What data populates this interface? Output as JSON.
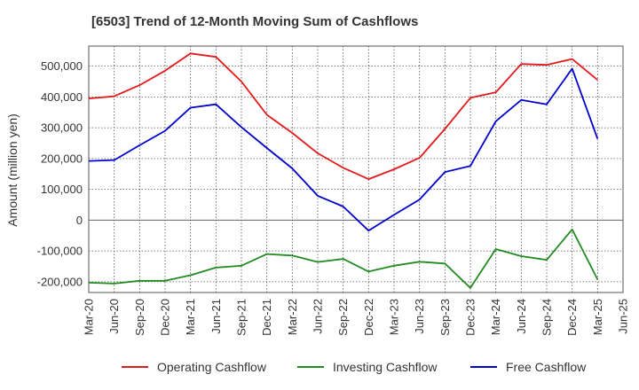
{
  "chart_data": {
    "type": "line",
    "title": "[6503]  Trend of 12-Month Moving Sum of Cashflows",
    "ylabel": "Amount (million yen)",
    "xlabel": "",
    "ylim": [
      -235000,
      565000
    ],
    "yticks": [
      -200000,
      -100000,
      0,
      100000,
      200000,
      300000,
      400000,
      500000
    ],
    "ytick_labels": [
      "-200,000",
      "-100,000",
      "0",
      "100,000",
      "200,000",
      "300,000",
      "400,000",
      "500,000"
    ],
    "categories": [
      "Mar-20",
      "Jun-20",
      "Sep-20",
      "Dec-20",
      "Mar-21",
      "Jun-21",
      "Sep-21",
      "Dec-21",
      "Mar-22",
      "Jun-22",
      "Sep-22",
      "Dec-22",
      "Mar-23",
      "Jun-23",
      "Sep-23",
      "Dec-23",
      "Mar-24",
      "Jun-24",
      "Sep-24",
      "Dec-24",
      "Mar-25",
      "Jun-25"
    ],
    "grid": true,
    "legend_position": "bottom",
    "series": [
      {
        "name": "Operating Cashflow",
        "color": "#e31a1c",
        "values": [
          395000,
          402000,
          438000,
          485000,
          541000,
          530000,
          450000,
          342000,
          283000,
          217000,
          170000,
          133000,
          165000,
          202000,
          296000,
          397000,
          415000,
          507000,
          504000,
          523000,
          455000,
          null
        ]
      },
      {
        "name": "Investing Cashflow",
        "color": "#228b22",
        "values": [
          -203000,
          -206000,
          -197000,
          -197000,
          -179000,
          -154000,
          -148000,
          -110000,
          -115000,
          -136000,
          -126000,
          -167000,
          -148000,
          -135000,
          -141000,
          -220000,
          -94000,
          -117000,
          -129000,
          -30000,
          -193000,
          null
        ]
      },
      {
        "name": "Free Cashflow",
        "color": "#0000cd",
        "values": [
          192000,
          195000,
          243000,
          290000,
          365000,
          376000,
          302000,
          234000,
          168000,
          79000,
          44000,
          -34000,
          17000,
          67000,
          156000,
          176000,
          321000,
          390000,
          376000,
          492000,
          264000,
          null
        ]
      }
    ]
  }
}
